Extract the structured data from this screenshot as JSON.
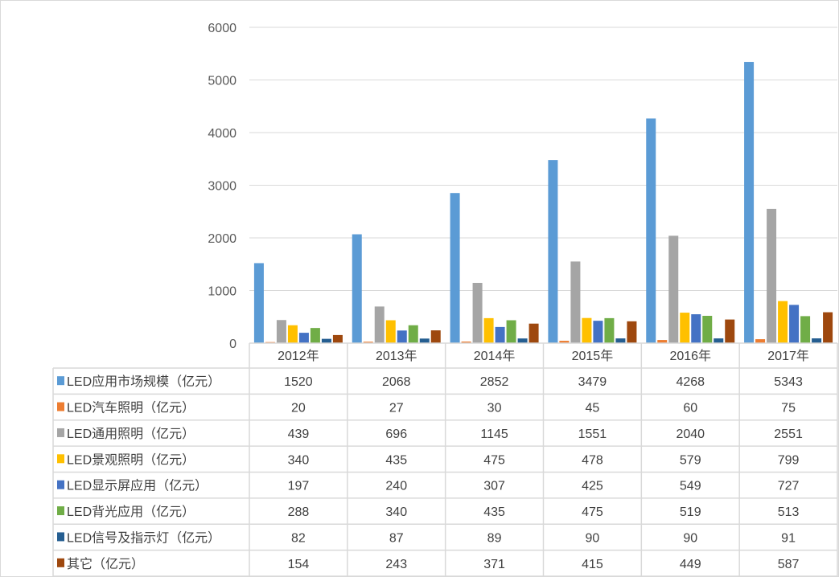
{
  "chart_data": {
    "type": "bar",
    "title": "",
    "xlabel": "",
    "ylabel": "",
    "ylim": [
      0,
      6000
    ],
    "yticks": [
      "0",
      "1000",
      "2000",
      "3000",
      "4000",
      "5000",
      "6000"
    ],
    "grid": true,
    "legend": "data-table",
    "categories": [
      "2012年",
      "2013年",
      "2014年",
      "2015年",
      "2016年",
      "2017年"
    ],
    "series": [
      {
        "name": "LED应用市场规模（亿元）",
        "color": "#5b9bd5",
        "values": [
          1520,
          2068,
          2852,
          3479,
          4268,
          5343
        ]
      },
      {
        "name": "LED汽车照明（亿元）",
        "color": "#ed7d31",
        "values": [
          20,
          27,
          30,
          45,
          60,
          75
        ]
      },
      {
        "name": "LED通用照明（亿元）",
        "color": "#a5a5a5",
        "values": [
          439,
          696,
          1145,
          1551,
          2040,
          2551
        ]
      },
      {
        "name": "LED景观照明（亿元）",
        "color": "#ffc000",
        "values": [
          340,
          435,
          475,
          478,
          579,
          799
        ]
      },
      {
        "name": "LED显示屏应用（亿元）",
        "color": "#4472c4",
        "values": [
          197,
          240,
          307,
          425,
          549,
          727
        ]
      },
      {
        "name": "LED背光应用（亿元）",
        "color": "#70ad47",
        "values": [
          288,
          340,
          435,
          475,
          519,
          513
        ]
      },
      {
        "name": "LED信号及指示灯（亿元）",
        "color": "#255e91",
        "values": [
          82,
          87,
          89,
          90,
          90,
          91
        ]
      },
      {
        "name": "其它（亿元）",
        "color": "#9e480e",
        "values": [
          154,
          243,
          371,
          415,
          449,
          587
        ]
      }
    ]
  }
}
